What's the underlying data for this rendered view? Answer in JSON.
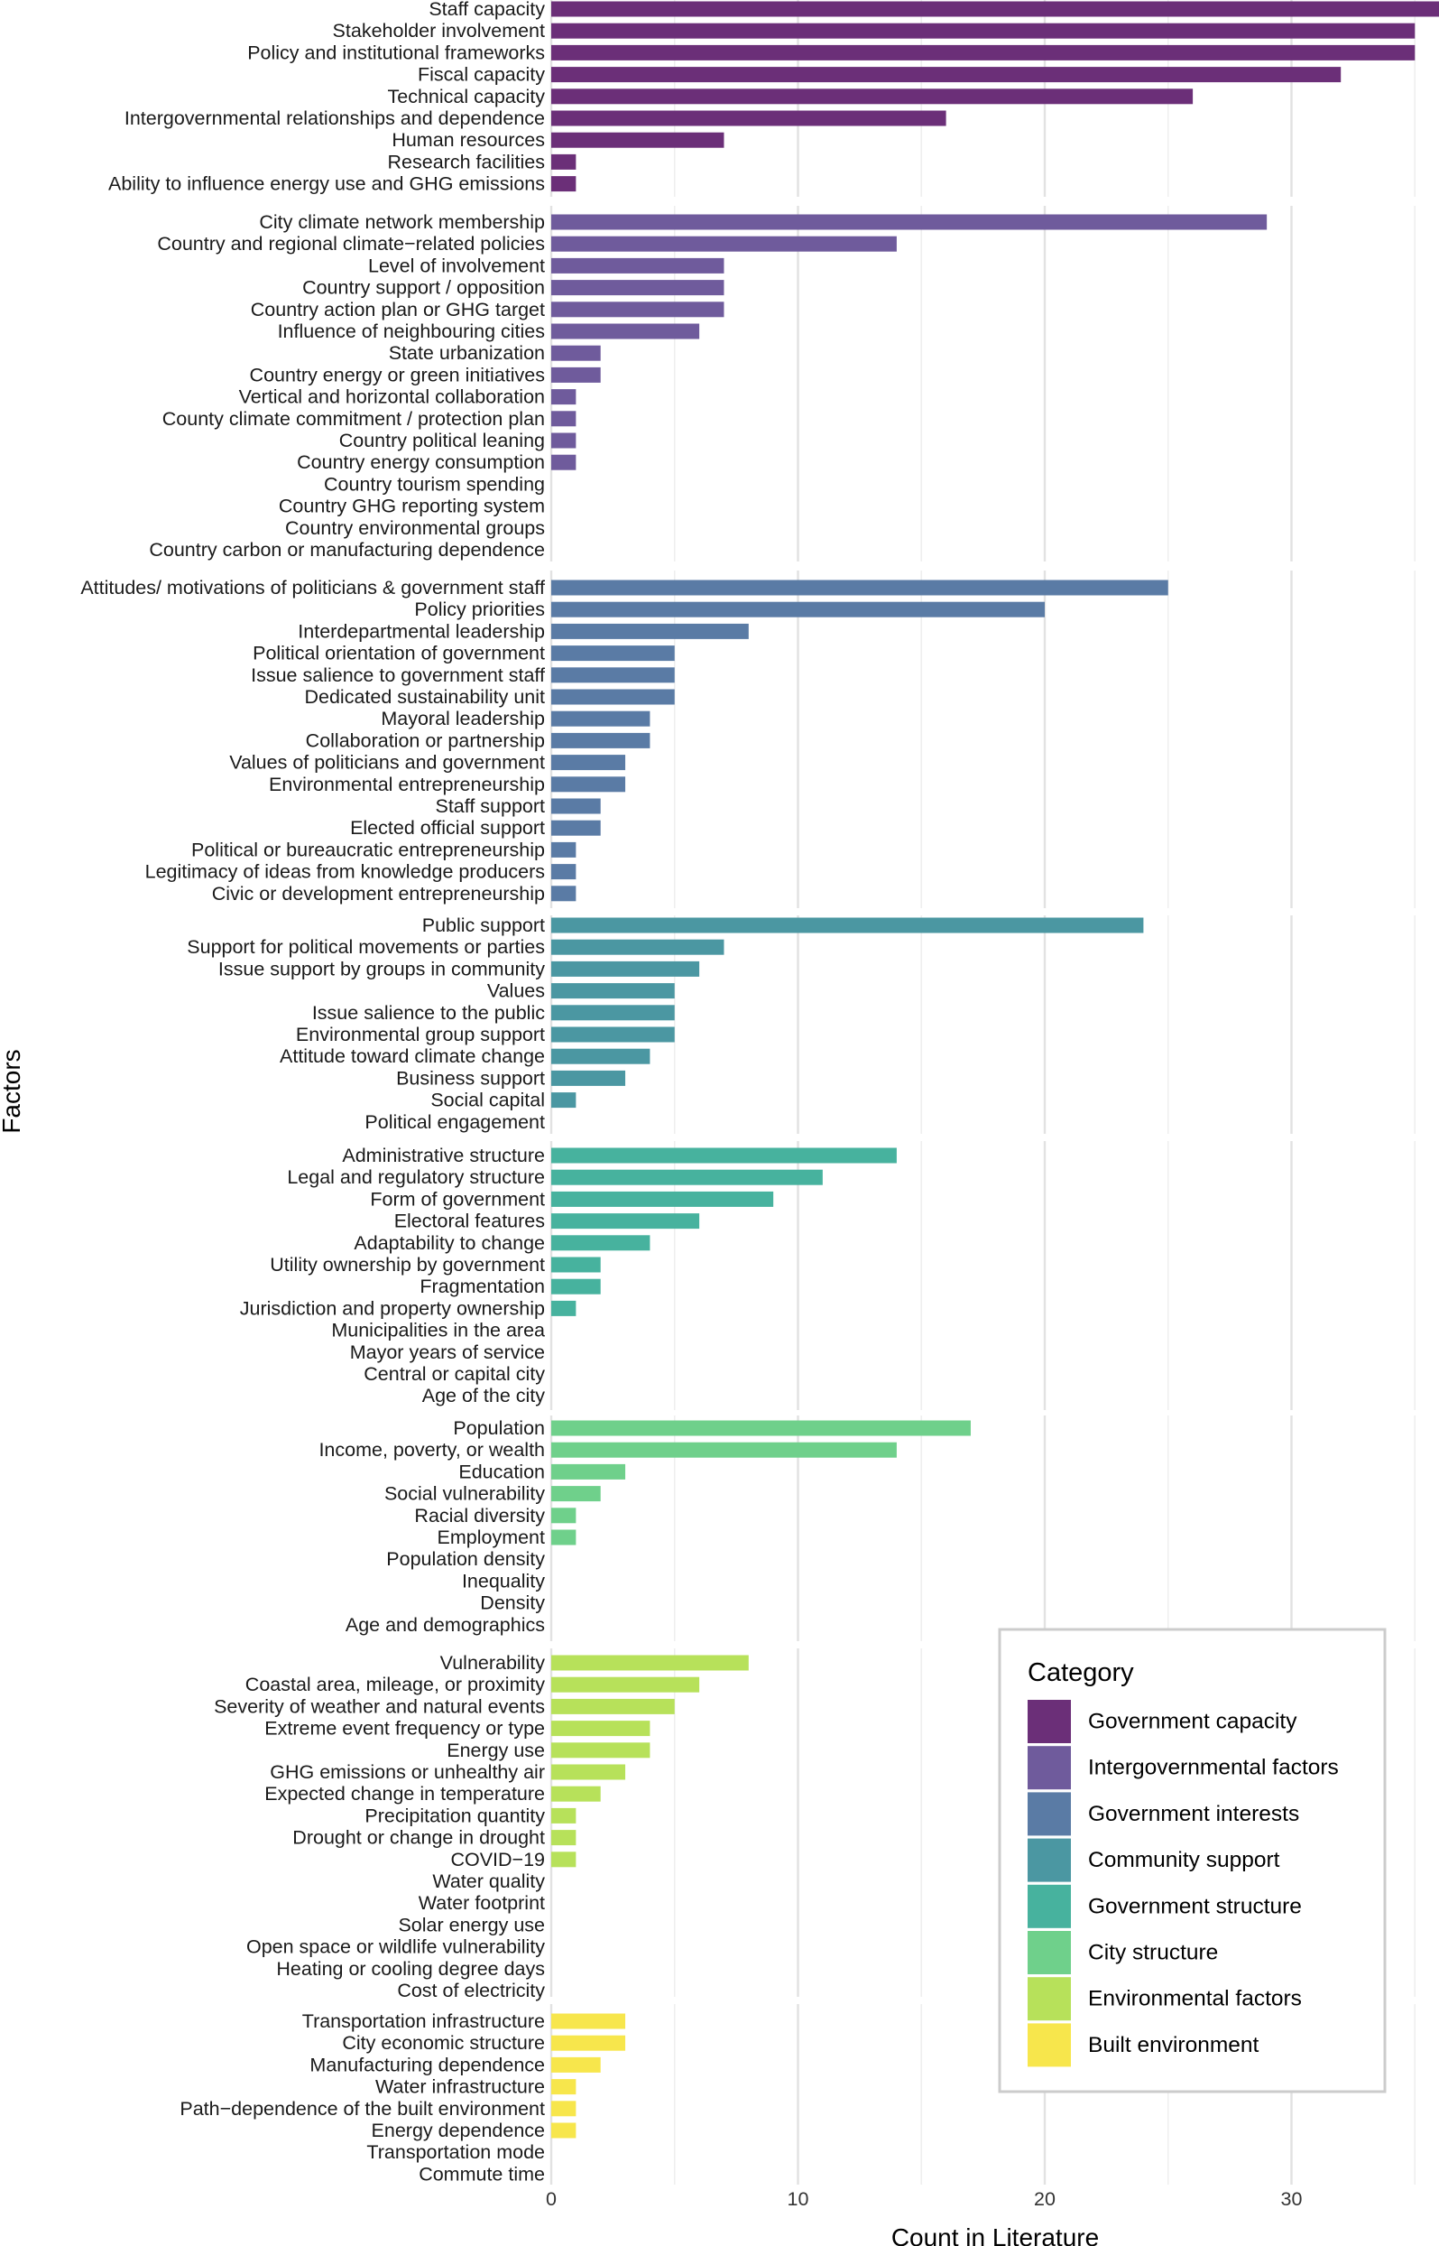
{
  "chart_data": {
    "type": "bar",
    "orientation": "horizontal",
    "xlabel": "Count in Literature",
    "ylabel": "Factors",
    "xlim": [
      0,
      35.5
    ],
    "x_ticks": [
      0,
      10,
      20,
      30
    ],
    "grid": true,
    "legend_position": "bottom-right",
    "legend": {
      "title": "Category",
      "entries": [
        {
          "name": "Government capacity",
          "color": "#6b2f78"
        },
        {
          "name": "Intergovernmental factors",
          "color": "#6f5b9c"
        },
        {
          "name": "Government interests",
          "color": "#5a7ba5"
        },
        {
          "name": "Community support",
          "color": "#4b97a2"
        },
        {
          "name": "Government structure",
          "color": "#47b29e"
        },
        {
          "name": "City structure",
          "color": "#6fd08b"
        },
        {
          "name": "Environmental factors",
          "color": "#b7e15a"
        },
        {
          "name": "Built environment",
          "color": "#f7e64c"
        }
      ]
    },
    "groups": [
      {
        "category": "Government capacity",
        "color": "#6b2f78",
        "factors": [
          {
            "label": "Staff capacity",
            "value": 36
          },
          {
            "label": "Stakeholder involvement",
            "value": 35
          },
          {
            "label": "Policy and institutional frameworks",
            "value": 35
          },
          {
            "label": "Fiscal capacity",
            "value": 32
          },
          {
            "label": "Technical capacity",
            "value": 26
          },
          {
            "label": "Intergovernmental relationships and dependence",
            "value": 16
          },
          {
            "label": "Human resources",
            "value": 7
          },
          {
            "label": "Research facilities",
            "value": 1
          },
          {
            "label": "Ability to influence energy use and GHG emissions",
            "value": 1
          }
        ]
      },
      {
        "category": "Intergovernmental factors",
        "color": "#6f5b9c",
        "factors": [
          {
            "label": "City climate network membership",
            "value": 29
          },
          {
            "label": "Country and regional climate−related policies",
            "value": 14
          },
          {
            "label": "Level of involvement",
            "value": 7
          },
          {
            "label": "Country support / opposition",
            "value": 7
          },
          {
            "label": "Country action plan or GHG target",
            "value": 7
          },
          {
            "label": "Influence of neighbouring cities",
            "value": 6
          },
          {
            "label": "State urbanization",
            "value": 2
          },
          {
            "label": "Country energy or green initiatives",
            "value": 2
          },
          {
            "label": "Vertical and horizontal collaboration",
            "value": 1
          },
          {
            "label": "County climate commitment / protection plan",
            "value": 1
          },
          {
            "label": "Country political leaning",
            "value": 1
          },
          {
            "label": "Country energy consumption",
            "value": 1
          },
          {
            "label": "Country tourism spending",
            "value": 0
          },
          {
            "label": "Country GHG reporting system",
            "value": 0
          },
          {
            "label": "Country environmental groups",
            "value": 0
          },
          {
            "label": "Country carbon or manufacturing dependence",
            "value": 0
          }
        ]
      },
      {
        "category": "Government interests",
        "color": "#5a7ba5",
        "factors": [
          {
            "label": "Attitudes/ motivations of politicians & government staff",
            "value": 25
          },
          {
            "label": "Policy priorities",
            "value": 20
          },
          {
            "label": "Interdepartmental leadership",
            "value": 8
          },
          {
            "label": "Political orientation of government",
            "value": 5
          },
          {
            "label": "Issue salience to government staff",
            "value": 5
          },
          {
            "label": "Dedicated sustainability unit",
            "value": 5
          },
          {
            "label": "Mayoral leadership",
            "value": 4
          },
          {
            "label": "Collaboration or partnership",
            "value": 4
          },
          {
            "label": "Values of politicians and government",
            "value": 3
          },
          {
            "label": "Environmental entrepreneurship",
            "value": 3
          },
          {
            "label": "Staff support",
            "value": 2
          },
          {
            "label": "Elected official support",
            "value": 2
          },
          {
            "label": "Political or bureaucratic entrepreneurship",
            "value": 1
          },
          {
            "label": "Legitimacy of ideas from knowledge producers",
            "value": 1
          },
          {
            "label": "Civic or development entrepreneurship",
            "value": 1
          }
        ]
      },
      {
        "category": "Community support",
        "color": "#4b97a2",
        "factors": [
          {
            "label": "Public support",
            "value": 24
          },
          {
            "label": "Support for political movements or parties",
            "value": 7
          },
          {
            "label": "Issue support by groups in community",
            "value": 6
          },
          {
            "label": "Values",
            "value": 5
          },
          {
            "label": "Issue salience to the public",
            "value": 5
          },
          {
            "label": "Environmental group support",
            "value": 5
          },
          {
            "label": "Attitude toward climate change",
            "value": 4
          },
          {
            "label": "Business support",
            "value": 3
          },
          {
            "label": "Social capital",
            "value": 1
          },
          {
            "label": "Political engagement",
            "value": 0
          }
        ]
      },
      {
        "category": "Government structure",
        "color": "#47b29e",
        "factors": [
          {
            "label": "Administrative structure",
            "value": 14
          },
          {
            "label": "Legal and regulatory structure",
            "value": 11
          },
          {
            "label": "Form of government",
            "value": 9
          },
          {
            "label": "Electoral features",
            "value": 6
          },
          {
            "label": "Adaptability to change",
            "value": 4
          },
          {
            "label": "Utility ownership by government",
            "value": 2
          },
          {
            "label": "Fragmentation",
            "value": 2
          },
          {
            "label": "Jurisdiction and property ownership",
            "value": 1
          },
          {
            "label": "Municipalities in the area",
            "value": 0
          },
          {
            "label": "Mayor years of service",
            "value": 0
          },
          {
            "label": "Central or capital city",
            "value": 0
          },
          {
            "label": "Age of the city",
            "value": 0
          }
        ]
      },
      {
        "category": "City structure",
        "color": "#6fd08b",
        "factors": [
          {
            "label": "Population",
            "value": 17
          },
          {
            "label": "Income, poverty, or wealth",
            "value": 14
          },
          {
            "label": "Education",
            "value": 3
          },
          {
            "label": "Social vulnerability",
            "value": 2
          },
          {
            "label": "Racial diversity",
            "value": 1
          },
          {
            "label": "Employment",
            "value": 1
          },
          {
            "label": "Population density",
            "value": 0
          },
          {
            "label": "Inequality",
            "value": 0
          },
          {
            "label": "Density",
            "value": 0
          },
          {
            "label": "Age and demographics",
            "value": 0
          }
        ]
      },
      {
        "category": "Environmental factors",
        "color": "#b7e15a",
        "factors": [
          {
            "label": "Vulnerability",
            "value": 8
          },
          {
            "label": "Coastal area, mileage, or proximity",
            "value": 6
          },
          {
            "label": "Severity of weather and natural events",
            "value": 5
          },
          {
            "label": "Extreme event frequency or type",
            "value": 4
          },
          {
            "label": "Energy use",
            "value": 4
          },
          {
            "label": "GHG emissions or unhealthy air",
            "value": 3
          },
          {
            "label": "Expected change in temperature",
            "value": 2
          },
          {
            "label": "Precipitation quantity",
            "value": 1
          },
          {
            "label": "Drought or change in drought",
            "value": 1
          },
          {
            "label": "COVID−19",
            "value": 1
          },
          {
            "label": "Water quality",
            "value": 0
          },
          {
            "label": "Water footprint",
            "value": 0
          },
          {
            "label": "Solar energy use",
            "value": 0
          },
          {
            "label": "Open space or wildlife vulnerability",
            "value": 0
          },
          {
            "label": "Heating or cooling degree days",
            "value": 0
          },
          {
            "label": "Cost of electricity",
            "value": 0
          }
        ]
      },
      {
        "category": "Built environment",
        "color": "#f7e64c",
        "factors": [
          {
            "label": "Transportation infrastructure",
            "value": 3
          },
          {
            "label": "City economic structure",
            "value": 3
          },
          {
            "label": "Manufacturing dependence",
            "value": 2
          },
          {
            "label": "Water infrastructure",
            "value": 1
          },
          {
            "label": "Path−dependence of the built environment",
            "value": 1
          },
          {
            "label": "Energy dependence",
            "value": 1
          },
          {
            "label": "Transportation mode",
            "value": 0
          },
          {
            "label": "Commute time",
            "value": 0
          }
        ]
      }
    ]
  }
}
